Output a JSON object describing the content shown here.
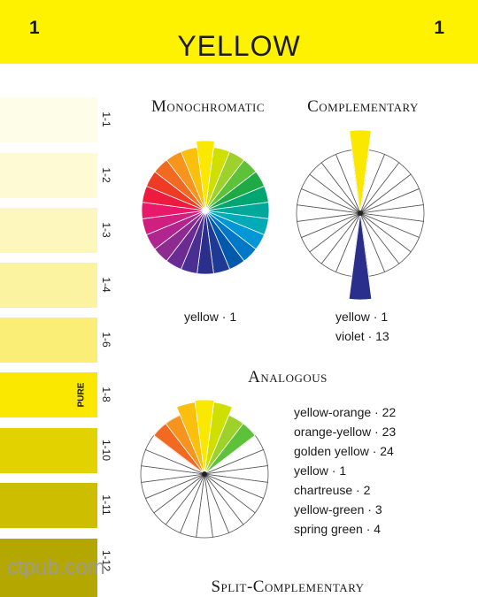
{
  "header": {
    "page_number_left": "1",
    "page_number_right": "1",
    "title": "YELLOW"
  },
  "swatches": [
    {
      "label": "1-1",
      "color": "#fefde8"
    },
    {
      "label": "1-2",
      "color": "#fefbd4"
    },
    {
      "label": "1-3",
      "color": "#fdf7bd"
    },
    {
      "label": "1-4",
      "color": "#fcf3a0"
    },
    {
      "label": "1-6",
      "color": "#fbee76"
    },
    {
      "label": "1-8",
      "color": "#fbe800",
      "tag": "PURE"
    },
    {
      "label": "1-10",
      "color": "#e2d200"
    },
    {
      "label": "1-11",
      "color": "#cdbf00"
    },
    {
      "label": "1-12",
      "color": "#b4a800"
    }
  ],
  "sections": {
    "monochromatic": {
      "title": "Monochromatic",
      "caption": "yellow · 1"
    },
    "complementary": {
      "title": "Complementary",
      "captions": [
        "yellow · 1",
        "violet · 13"
      ]
    },
    "analogous": {
      "title": "Analogous",
      "items": [
        "yellow-orange · 22",
        "orange-yellow · 23",
        "golden yellow · 24",
        "yellow · 1",
        "chartreuse · 2",
        "yellow-green · 3",
        "spring green · 4"
      ]
    },
    "split_complementary": {
      "title": "Split-Complementary"
    }
  },
  "watermark": "ctpub.com",
  "wheel_colors": [
    "#fbe800",
    "#cfe000",
    "#9fd12c",
    "#5ec13a",
    "#1faa45",
    "#00a672",
    "#00a89b",
    "#00aab7",
    "#0097d6",
    "#0078c8",
    "#0059aa",
    "#1f3a95",
    "#2b2f8c",
    "#4a2f92",
    "#6a2b93",
    "#8e2b91",
    "#b0268e",
    "#d0207f",
    "#e8196a",
    "#ed1c3f",
    "#ee3b24",
    "#f26a21",
    "#f7941d",
    "#fbbf0e"
  ]
}
